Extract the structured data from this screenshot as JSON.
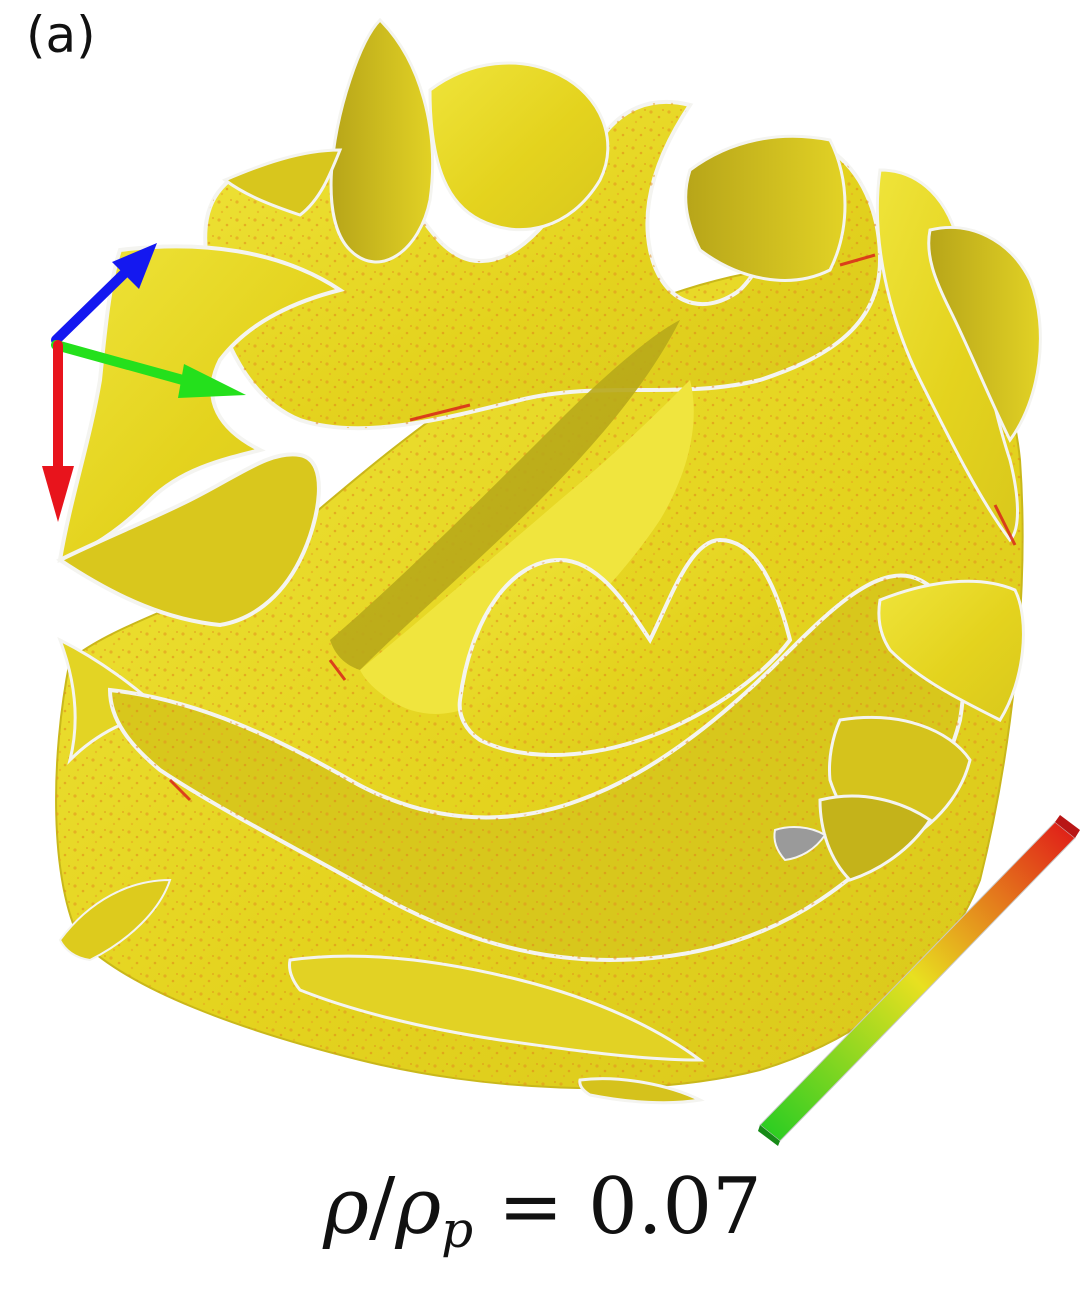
{
  "panel": {
    "label": "(a)"
  },
  "caption": {
    "rho": "ρ",
    "slash": "/",
    "rho2": "ρ",
    "subscript": "p",
    "equals": " = ",
    "value": "0.07"
  },
  "colors": {
    "surface_main": "#e6d81e",
    "surface_light": "#f2ea3c",
    "surface_shadow": "#b9a81a",
    "speckle": "#e08a1c",
    "edge_outline": "#f4f4f0",
    "axis_x": "#e8141c",
    "axis_y": "#24e01c",
    "axis_z": "#1418f0",
    "colorbar_low": "#22cc22",
    "colorbar_mid": "#e8e020",
    "colorbar_high": "#e01818"
  },
  "icons": {
    "axes": "xyz-axes-triad-icon",
    "colorbar": "color-scale-bar-icon"
  }
}
